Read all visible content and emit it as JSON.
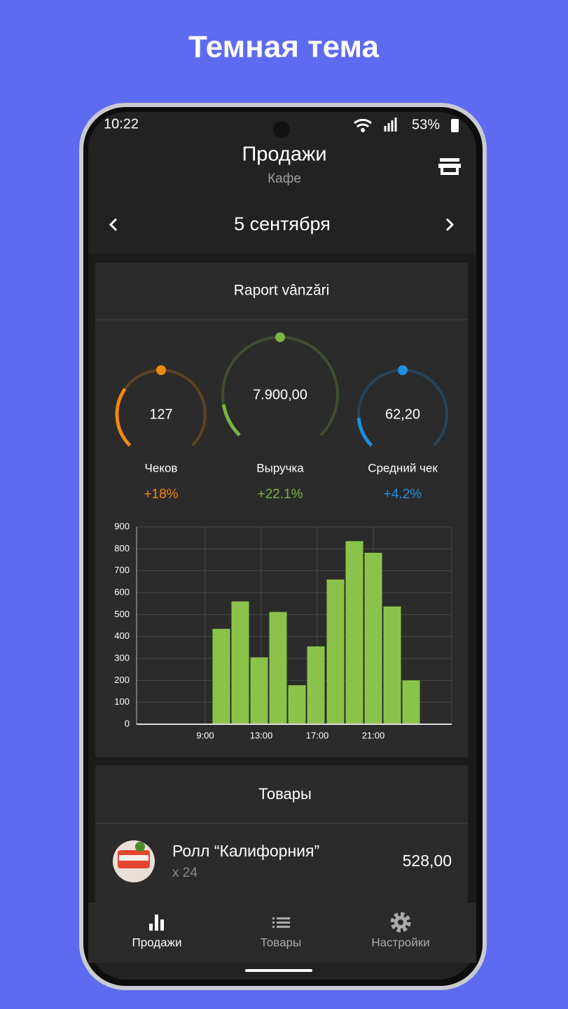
{
  "title": "Темная тема",
  "status_bar": {
    "time": "10:22",
    "battery": "53%"
  },
  "header": {
    "title": "Продажи",
    "subtitle": "Кафе"
  },
  "date": "5 сентября",
  "report": {
    "title": "Raport vânzări",
    "gauges": [
      {
        "value": "127",
        "label": "Чеков",
        "change": "+18%",
        "color": "#f0890f"
      },
      {
        "value": "7.900,00",
        "label": "Выручка",
        "change": "+22.1%",
        "color": "#7cb342"
      },
      {
        "value": "62,20",
        "label": "Средний чек",
        "change": "+4.2%",
        "color": "#1e90e0"
      }
    ]
  },
  "chart_data": {
    "type": "bar",
    "x": [
      10.15,
      11.5,
      12.85,
      14.2,
      15.55,
      16.9,
      18.3,
      19.65,
      21.0,
      22.35,
      23.7
    ],
    "values": [
      435,
      560,
      305,
      512,
      178,
      355,
      660,
      835,
      782,
      537,
      200
    ],
    "color": "#8bc34a",
    "xlim": [
      4.1,
      26.6
    ],
    "ylim": [
      0,
      900
    ],
    "yticks": [
      0,
      100,
      200,
      300,
      400,
      500,
      600,
      700,
      800,
      900
    ],
    "xticks": [
      {
        "value": 9,
        "label": "9:00"
      },
      {
        "value": 13,
        "label": "13:00"
      },
      {
        "value": 17,
        "label": "17:00"
      },
      {
        "value": 21,
        "label": "21:00"
      }
    ],
    "grid": true
  },
  "products": {
    "title": "Товары",
    "items": [
      {
        "name": "Ролл “Калифорния”",
        "quantity": "x 24",
        "price": "528,00"
      }
    ]
  },
  "nav": [
    {
      "label": "Продажи",
      "active": true
    },
    {
      "label": "Товары",
      "active": false
    },
    {
      "label": "Настройки",
      "active": false
    }
  ]
}
